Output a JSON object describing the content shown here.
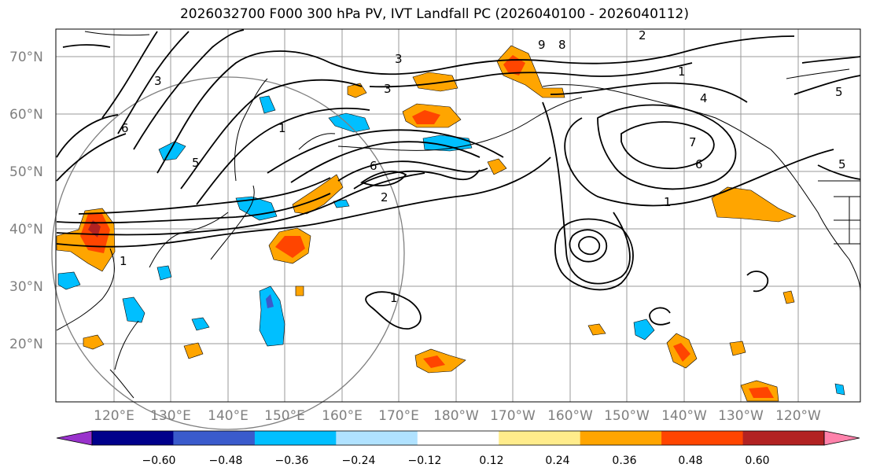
{
  "title": "2026032700 F000 300 hPa PV, IVT Landfall PC (2026040100 - 2026040112)",
  "map": {
    "lat_labels": [
      "70°N",
      "60°N",
      "50°N",
      "40°N",
      "30°N",
      "20°N"
    ],
    "lon_labels": [
      "120°E",
      "130°E",
      "140°E",
      "150°E",
      "160°E",
      "170°E",
      "180°W",
      "170°W",
      "160°W",
      "150°W",
      "140°W",
      "130°W",
      "120°W"
    ]
  },
  "contour_labels": [
    "1",
    "2",
    "3",
    "4",
    "5",
    "6",
    "7",
    "9",
    "8"
  ],
  "colorbar": {
    "colors": [
      "#9932cc",
      "#00008b",
      "#3a5bcc",
      "#00bfff",
      "#b0e2ff",
      "#ffffff",
      "#ffec8b",
      "#ffa500",
      "#ff4500",
      "#b22222",
      "#ff82ab"
    ],
    "tick_labels": [
      "−0.60",
      "−0.48",
      "−0.36",
      "−0.24",
      "−0.12",
      "0.12",
      "0.24",
      "0.36",
      "0.48",
      "0.60"
    ]
  }
}
